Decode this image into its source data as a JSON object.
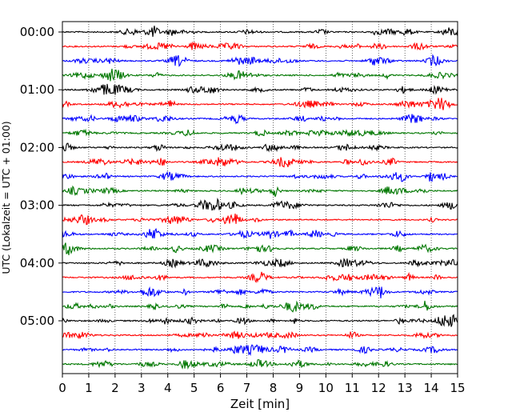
{
  "chart_data": {
    "type": "line",
    "title": "",
    "xlabel": "Zeit  [min]",
    "ylabel": "UTC (Lokalzeit = UTC + 01:00)",
    "xlim": [
      0,
      15
    ],
    "x_ticks": [
      "0",
      "1",
      "2",
      "3",
      "4",
      "5",
      "6",
      "7",
      "8",
      "9",
      "10",
      "11",
      "12",
      "13",
      "14",
      "15"
    ],
    "y_tick_labels": [
      "00:00",
      "01:00",
      "02:00",
      "03:00",
      "04:00",
      "05:00"
    ],
    "row_interval_min": 15,
    "rows": 24,
    "row_colors": [
      "#000000",
      "#ff0000",
      "#0000ff",
      "#007700"
    ],
    "grid": "vertical dotted",
    "legend": "none"
  }
}
